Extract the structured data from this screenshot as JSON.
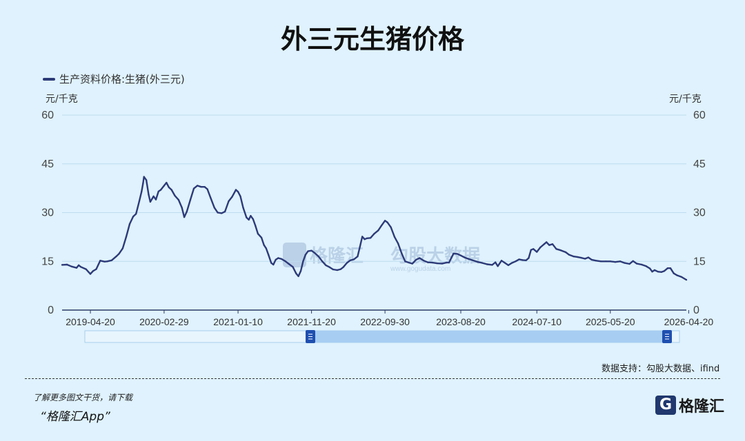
{
  "page": {
    "title": "外三元生猪价格",
    "source": "数据支持：勾股大数据、ifind",
    "promo_line": "了解更多图文干货，请下载",
    "app_name": "“格隆汇App”",
    "brand_logo_letter": "G",
    "brand_name": "格隆汇",
    "watermark_text_1": "格隆汇",
    "watermark_text_2": "勾股大数据",
    "watermark_sub": "www.gogudata.com"
  },
  "chart_data": {
    "type": "line",
    "title": "外三元生猪价格",
    "legend_position": "top-left",
    "grid": true,
    "y_unit_left": "元/千克",
    "y_unit_right": "元/千克",
    "ylim": [
      0,
      60
    ],
    "y_ticks": [
      "0",
      "15",
      "30",
      "45",
      "60"
    ],
    "x_ticks": [
      "2019-04-20",
      "2020-02-29",
      "2021-01-10",
      "2021-11-20",
      "2022-09-30",
      "2023-08-20",
      "2024-07-10",
      "2025-05-20",
      "2026-04-20"
    ],
    "series": [
      {
        "name": "生产资料价格:生猪(外三元)",
        "color": "#2d3a78",
        "points": [
          [
            "2018-12-20",
            13.9
          ],
          [
            "2019-01-10",
            14.0
          ],
          [
            "2019-01-30",
            13.4
          ],
          [
            "2019-02-20",
            13.0
          ],
          [
            "2019-03-01",
            13.8
          ],
          [
            "2019-03-10",
            13.3
          ],
          [
            "2019-04-01",
            12.6
          ],
          [
            "2019-04-20",
            11.1
          ],
          [
            "2019-05-01",
            12.0
          ],
          [
            "2019-05-15",
            12.6
          ],
          [
            "2019-06-01",
            15.2
          ],
          [
            "2019-06-20",
            14.9
          ],
          [
            "2019-07-01",
            15.0
          ],
          [
            "2019-07-20",
            15.3
          ],
          [
            "2019-08-10",
            16.6
          ],
          [
            "2019-08-20",
            17.3
          ],
          [
            "2019-09-05",
            19.0
          ],
          [
            "2019-09-20",
            22.5
          ],
          [
            "2019-10-05",
            26.5
          ],
          [
            "2019-10-20",
            28.8
          ],
          [
            "2019-11-01",
            29.6
          ],
          [
            "2019-11-15",
            33.5
          ],
          [
            "2019-11-25",
            36.5
          ],
          [
            "2019-12-01",
            39.0
          ],
          [
            "2019-12-05",
            41.0
          ],
          [
            "2019-12-15",
            40.0
          ],
          [
            "2019-12-25",
            35.5
          ],
          [
            "2020-01-01",
            33.3
          ],
          [
            "2020-01-15",
            35.0
          ],
          [
            "2020-01-25",
            34.0
          ],
          [
            "2020-02-05",
            36.5
          ],
          [
            "2020-02-15",
            37.0
          ],
          [
            "2020-02-29",
            38.3
          ],
          [
            "2020-03-10",
            39.2
          ],
          [
            "2020-03-20",
            37.8
          ],
          [
            "2020-04-01",
            37.0
          ],
          [
            "2020-04-15",
            35.2
          ],
          [
            "2020-05-01",
            33.9
          ],
          [
            "2020-05-15",
            31.5
          ],
          [
            "2020-05-25",
            28.6
          ],
          [
            "2020-06-05",
            30.3
          ],
          [
            "2020-06-20",
            33.9
          ],
          [
            "2020-07-05",
            37.4
          ],
          [
            "2020-07-20",
            38.3
          ],
          [
            "2020-08-05",
            37.9
          ],
          [
            "2020-08-20",
            37.9
          ],
          [
            "2020-09-01",
            37.2
          ],
          [
            "2020-09-15",
            34.5
          ],
          [
            "2020-10-01",
            31.5
          ],
          [
            "2020-10-15",
            30.0
          ],
          [
            "2020-11-01",
            29.8
          ],
          [
            "2020-11-15",
            30.3
          ],
          [
            "2020-12-01",
            33.5
          ],
          [
            "2020-12-15",
            34.8
          ],
          [
            "2021-01-01",
            37.0
          ],
          [
            "2021-01-10",
            36.4
          ],
          [
            "2021-01-20",
            35.0
          ],
          [
            "2021-02-01",
            31.5
          ],
          [
            "2021-02-15",
            28.5
          ],
          [
            "2021-02-25",
            27.8
          ],
          [
            "2021-03-05",
            29.0
          ],
          [
            "2021-03-15",
            28.0
          ],
          [
            "2021-03-25",
            26.0
          ],
          [
            "2021-04-05",
            23.5
          ],
          [
            "2021-04-20",
            22.3
          ],
          [
            "2021-05-01",
            20.0
          ],
          [
            "2021-05-10",
            19.0
          ],
          [
            "2021-05-20",
            17.0
          ],
          [
            "2021-06-01",
            14.5
          ],
          [
            "2021-06-10",
            14.0
          ],
          [
            "2021-06-20",
            15.5
          ],
          [
            "2021-07-01",
            16.0
          ],
          [
            "2021-07-15",
            15.7
          ],
          [
            "2021-08-01",
            15.0
          ],
          [
            "2021-08-15",
            14.2
          ],
          [
            "2021-09-01",
            13.3
          ],
          [
            "2021-09-15",
            11.3
          ],
          [
            "2021-09-25",
            10.4
          ],
          [
            "2021-10-05",
            12.0
          ],
          [
            "2021-10-15",
            15.0
          ],
          [
            "2021-10-25",
            17.0
          ],
          [
            "2021-11-05",
            18.1
          ],
          [
            "2021-11-20",
            18.3
          ],
          [
            "2021-12-05",
            17.5
          ],
          [
            "2021-12-20",
            16.5
          ],
          [
            "2022-01-05",
            15.0
          ],
          [
            "2022-01-20",
            13.8
          ],
          [
            "2022-02-05",
            13.2
          ],
          [
            "2022-02-20",
            12.5
          ],
          [
            "2022-03-10",
            12.3
          ],
          [
            "2022-03-25",
            12.6
          ],
          [
            "2022-04-05",
            13.2
          ],
          [
            "2022-04-20",
            14.5
          ],
          [
            "2022-05-05",
            15.3
          ],
          [
            "2022-05-20",
            15.6
          ],
          [
            "2022-06-05",
            16.5
          ],
          [
            "2022-06-15",
            19.5
          ],
          [
            "2022-06-25",
            22.6
          ],
          [
            "2022-07-05",
            21.8
          ],
          [
            "2022-07-15",
            22.1
          ],
          [
            "2022-07-30",
            22.2
          ],
          [
            "2022-08-15",
            23.5
          ],
          [
            "2022-09-01",
            24.5
          ],
          [
            "2022-09-15",
            26.0
          ],
          [
            "2022-09-30",
            27.5
          ],
          [
            "2022-10-10",
            27.0
          ],
          [
            "2022-10-25",
            25.5
          ],
          [
            "2022-11-10",
            22.5
          ],
          [
            "2022-11-25",
            20.5
          ],
          [
            "2022-12-10",
            17.5
          ],
          [
            "2022-12-25",
            15.0
          ],
          [
            "2023-01-10",
            14.6
          ],
          [
            "2023-01-25",
            14.3
          ],
          [
            "2023-02-10",
            15.5
          ],
          [
            "2023-02-25",
            16.0
          ],
          [
            "2023-03-15",
            15.2
          ],
          [
            "2023-04-01",
            14.7
          ],
          [
            "2023-04-20",
            14.6
          ],
          [
            "2023-05-10",
            14.4
          ],
          [
            "2023-06-01",
            14.3
          ],
          [
            "2023-06-20",
            14.6
          ],
          [
            "2023-07-01",
            14.6
          ],
          [
            "2023-07-10",
            16.0
          ],
          [
            "2023-07-20",
            17.4
          ],
          [
            "2023-08-05",
            17.3
          ],
          [
            "2023-08-20",
            16.8
          ],
          [
            "2023-09-05",
            16.2
          ],
          [
            "2023-09-20",
            15.8
          ],
          [
            "2023-10-10",
            15.3
          ],
          [
            "2023-11-01",
            14.8
          ],
          [
            "2023-11-20",
            14.5
          ],
          [
            "2023-12-10",
            14.1
          ],
          [
            "2024-01-01",
            13.9
          ],
          [
            "2024-01-15",
            14.7
          ],
          [
            "2024-01-25",
            13.5
          ],
          [
            "2024-02-10",
            15.2
          ],
          [
            "2024-02-25",
            14.5
          ],
          [
            "2024-03-10",
            13.8
          ],
          [
            "2024-03-25",
            14.5
          ],
          [
            "2024-04-10",
            15.0
          ],
          [
            "2024-04-25",
            15.6
          ],
          [
            "2024-05-10",
            15.4
          ],
          [
            "2024-05-25",
            15.3
          ],
          [
            "2024-06-05",
            16.0
          ],
          [
            "2024-06-15",
            18.5
          ],
          [
            "2024-06-25",
            18.8
          ],
          [
            "2024-07-10",
            17.9
          ],
          [
            "2024-07-25",
            19.3
          ],
          [
            "2024-08-10",
            20.3
          ],
          [
            "2024-08-20",
            20.9
          ],
          [
            "2024-09-01",
            20.0
          ],
          [
            "2024-09-15",
            20.3
          ],
          [
            "2024-10-01",
            18.8
          ],
          [
            "2024-10-20",
            18.4
          ],
          [
            "2024-11-10",
            17.8
          ],
          [
            "2024-11-25",
            17.0
          ],
          [
            "2024-12-15",
            16.5
          ],
          [
            "2025-01-01",
            16.3
          ],
          [
            "2025-01-15",
            16.1
          ],
          [
            "2025-02-01",
            15.8
          ],
          [
            "2025-02-15",
            16.2
          ],
          [
            "2025-03-01",
            15.5
          ],
          [
            "2025-03-20",
            15.2
          ],
          [
            "2025-04-10",
            15.0
          ],
          [
            "2025-05-01",
            15.0
          ],
          [
            "2025-05-20",
            15.0
          ],
          [
            "2025-06-10",
            14.8
          ],
          [
            "2025-07-01",
            15.0
          ],
          [
            "2025-07-20",
            14.5
          ],
          [
            "2025-08-10",
            14.2
          ],
          [
            "2025-08-25",
            15.1
          ],
          [
            "2025-09-10",
            14.3
          ],
          [
            "2025-10-01",
            14.0
          ],
          [
            "2025-10-20",
            13.5
          ],
          [
            "2025-11-05",
            12.8
          ],
          [
            "2025-11-15",
            11.8
          ],
          [
            "2025-11-25",
            12.3
          ],
          [
            "2025-12-10",
            11.8
          ],
          [
            "2025-12-25",
            11.7
          ],
          [
            "2026-01-05",
            12.0
          ],
          [
            "2026-01-20",
            12.9
          ],
          [
            "2026-02-01",
            12.9
          ],
          [
            "2026-02-15",
            11.3
          ],
          [
            "2026-03-01",
            10.7
          ],
          [
            "2026-03-20",
            10.2
          ],
          [
            "2026-04-10",
            9.3
          ]
        ]
      }
    ]
  }
}
